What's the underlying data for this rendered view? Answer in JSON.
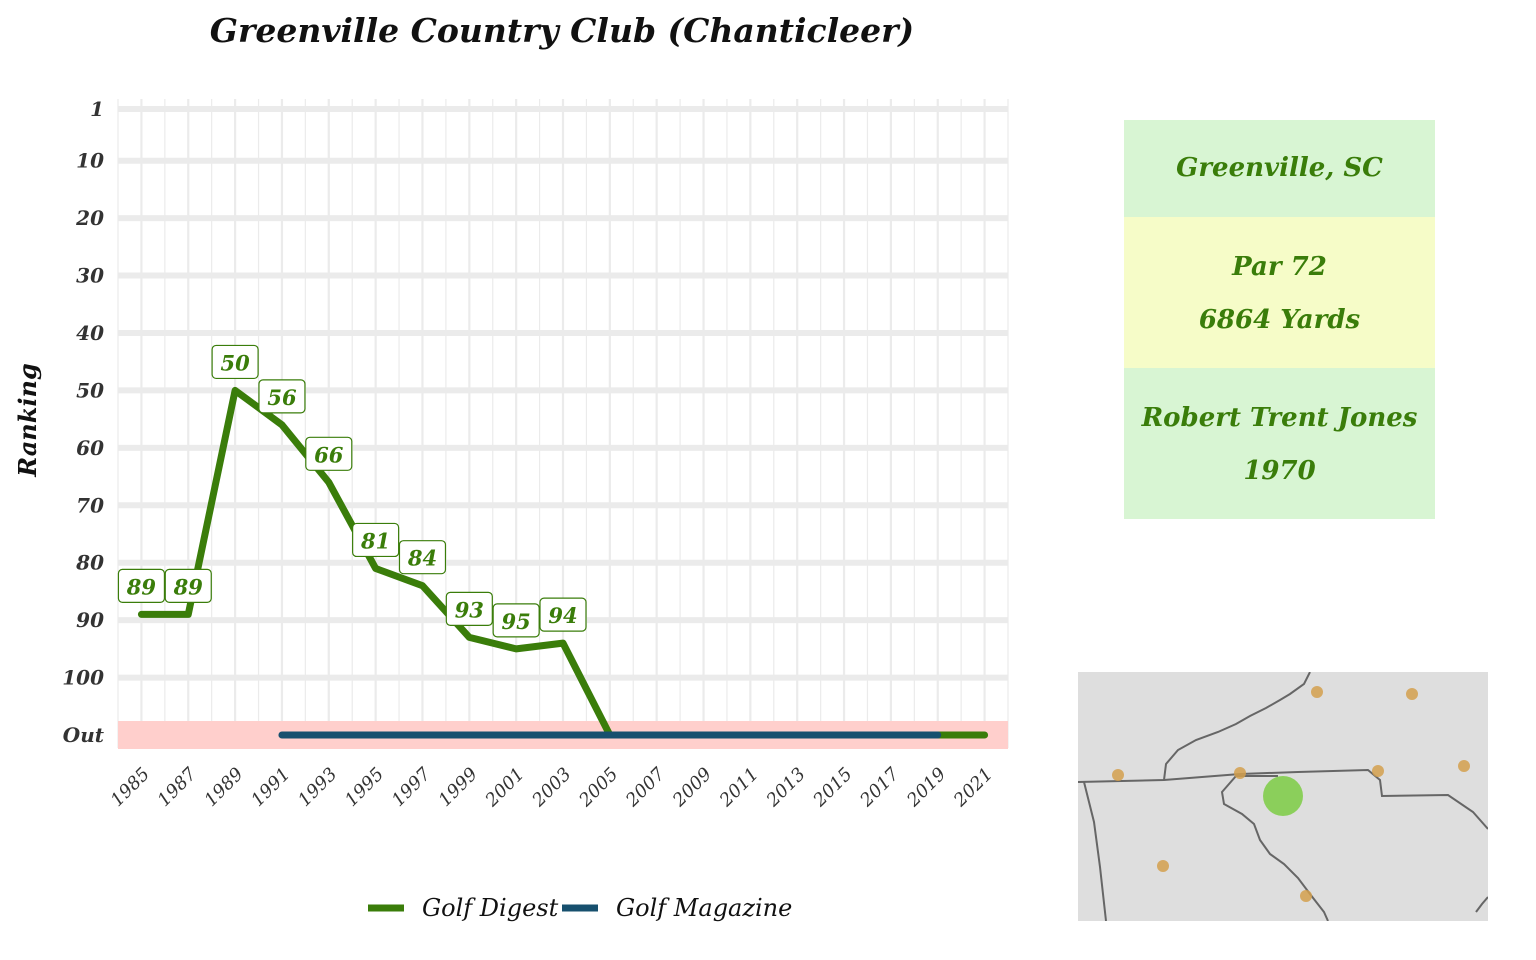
{
  "chart_data": {
    "type": "line",
    "title": "Greenville Country Club (Chanticleer)",
    "ylabel": "Ranking",
    "xlabel": "",
    "x_ticks": [
      "1985",
      "1987",
      "1989",
      "1991",
      "1993",
      "1995",
      "1997",
      "1999",
      "2001",
      "2003",
      "2005",
      "2007",
      "2009",
      "2011",
      "2013",
      "2015",
      "2017",
      "2019",
      "2021"
    ],
    "xlim": [
      1984,
      2022
    ],
    "y_ticks": [
      "1",
      "10",
      "20",
      "30",
      "40",
      "50",
      "60",
      "70",
      "80",
      "90",
      "100",
      "Out"
    ],
    "y_tick_values": [
      1,
      10,
      20,
      30,
      40,
      50,
      60,
      70,
      80,
      90,
      100,
      110
    ],
    "ylim_reversed": [
      1,
      110
    ],
    "out_value": 110,
    "out_band_color": "#ffcfcc",
    "grid": true,
    "legend_position": "bottom",
    "series": [
      {
        "name": "Golf Digest",
        "color": "#3a7d0a",
        "points": [
          {
            "x": 1985,
            "y": 89,
            "label": "89"
          },
          {
            "x": 1987,
            "y": 89,
            "label": "89"
          },
          {
            "x": 1989,
            "y": 50,
            "label": "50"
          },
          {
            "x": 1991,
            "y": 56,
            "label": "56"
          },
          {
            "x": 1993,
            "y": 66,
            "label": "66"
          },
          {
            "x": 1995,
            "y": 81,
            "label": "81"
          },
          {
            "x": 1997,
            "y": 84,
            "label": "84"
          },
          {
            "x": 1999,
            "y": 93,
            "label": "93"
          },
          {
            "x": 2001,
            "y": 95,
            "label": "95"
          },
          {
            "x": 2003,
            "y": 94,
            "label": "94"
          },
          {
            "x": 2005,
            "y": 110
          },
          {
            "x": 2021,
            "y": 110
          }
        ]
      },
      {
        "name": "Golf Magazine",
        "color": "#17506e",
        "points": [
          {
            "x": 1991,
            "y": 110
          },
          {
            "x": 2019,
            "y": 110
          }
        ]
      }
    ]
  },
  "info": {
    "location": "Greenville, SC",
    "par": "Par 72",
    "yards": "6864 Yards",
    "architect": "Robert Trent Jones",
    "year": "1970"
  },
  "map": {
    "background": "#dedede",
    "border_color": "#666666",
    "course_color": "#7ccc44",
    "other_color": "#d4a04e"
  }
}
